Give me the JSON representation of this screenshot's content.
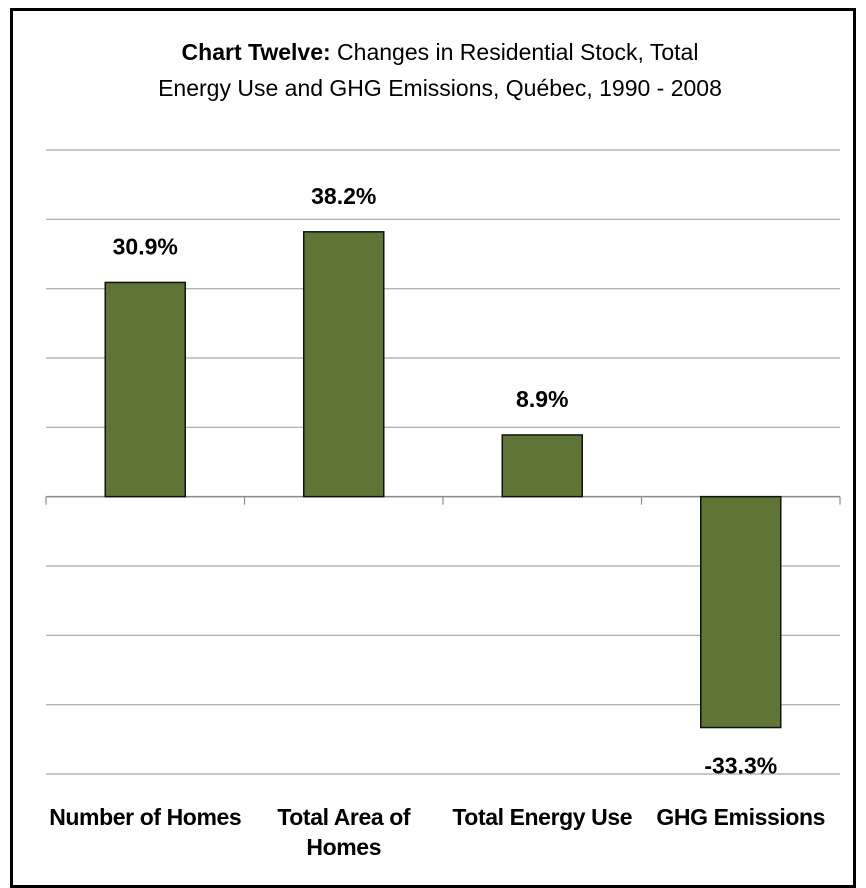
{
  "chart_data": {
    "type": "bar",
    "title": [
      "Chart Twelve:",
      "Changes in Residential Stock, Total",
      "Energy Use and GHG Emissions, Québec, 1990 - 2008"
    ],
    "categories": [
      "Number of Homes",
      "Total Area of Homes",
      "Total Energy Use",
      "GHG Emissions"
    ],
    "values": [
      30.9,
      38.2,
      8.9,
      -33.3
    ],
    "value_labels": [
      "30.9%",
      "38.2%",
      "8.9%",
      "-33.3%"
    ],
    "color": "#5f7536",
    "ylim": [
      -40,
      50
    ],
    "yticks": [
      -40,
      -30,
      -20,
      -10,
      0,
      10,
      20,
      30,
      40,
      50
    ],
    "grid": true
  }
}
